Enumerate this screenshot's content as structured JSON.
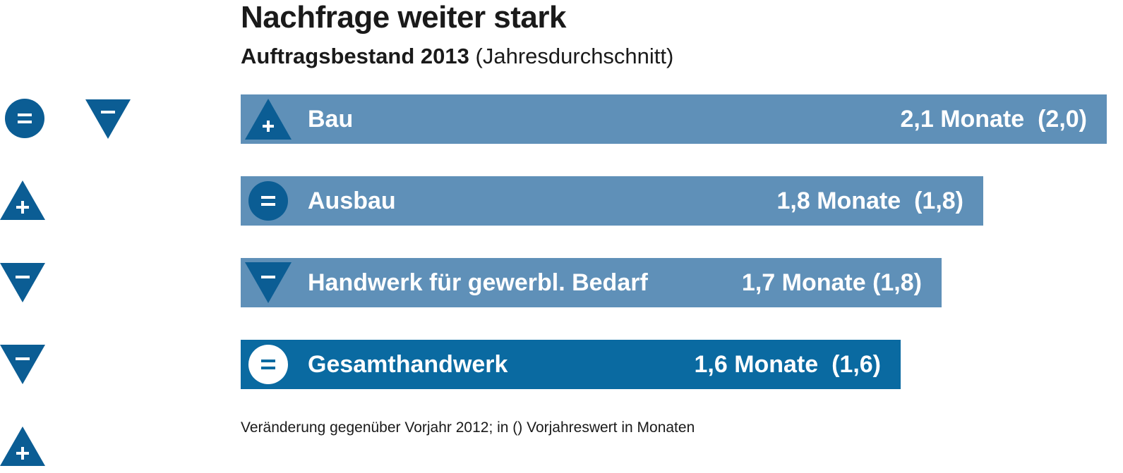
{
  "title": "Nachfrage weiter stark",
  "subtitle": {
    "bold": "Auftragsbestand 2013",
    "normal": "(Jahresdurchschnitt)"
  },
  "footnote": "Veränderung gegenüber Vorjahr 2012; in () Vorjahreswert in Monaten",
  "colors": {
    "bar_light": "#5f90b8",
    "bar_dark": "#0a6aa1",
    "icon_dark": "#0b5d94",
    "white": "#ffffff"
  },
  "legend_icons": [
    "equal-circle-icon",
    "minus-triangle-down-icon",
    "plus-triangle-up-icon",
    "minus-triangle-down-icon",
    "minus-triangle-down-icon",
    "plus-triangle-up-icon"
  ],
  "chart_data": {
    "type": "bar",
    "orientation": "horizontal",
    "title": "Nachfrage weiter stark",
    "subtitle": "Auftragsbestand 2013 (Jahresdurchschnitt)",
    "unit": "Monate",
    "categories": [
      "Bau",
      "Ausbau",
      "Handwerk für gewerbl. Bedarf",
      "Gesamthandwerk"
    ],
    "values": [
      2.1,
      1.8,
      1.7,
      1.6
    ],
    "previous_year_values": [
      2.0,
      1.8,
      1.8,
      1.6
    ],
    "value_labels": [
      "2,1 Monate  (2,0)",
      "1,8 Monate  (1,8)",
      "1,7 Monate (1,8)",
      "1,6 Monate  (1,6)"
    ],
    "change_icons": [
      "plus",
      "equal",
      "minus",
      "equal"
    ],
    "highlight": [
      false,
      false,
      false,
      true
    ],
    "xlim": [
      0,
      2.1
    ],
    "grid": false,
    "legend": "left"
  }
}
